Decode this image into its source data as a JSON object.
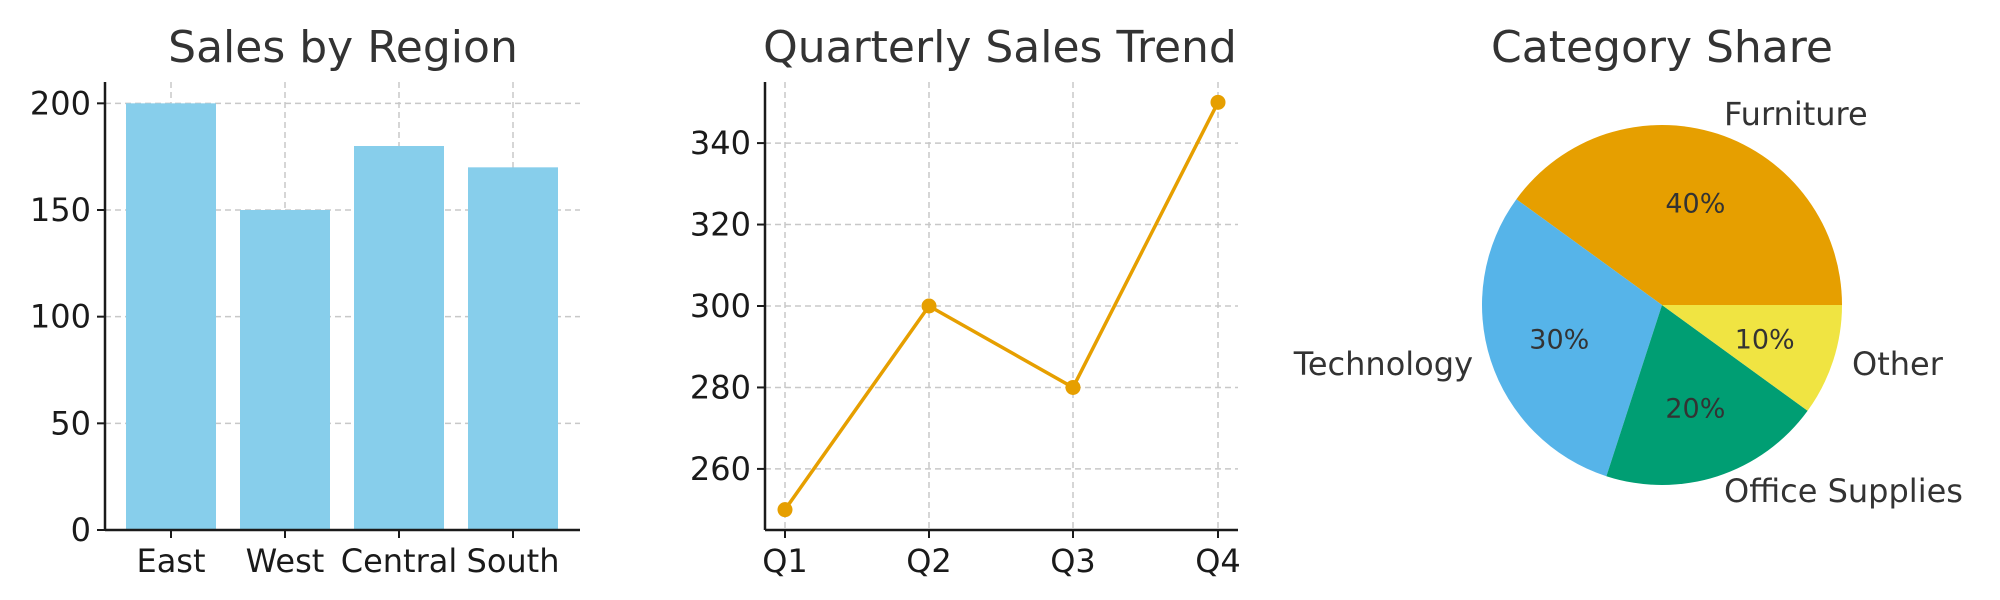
{
  "chart_data": [
    {
      "type": "bar",
      "title": "Sales by Region",
      "categories": [
        "East",
        "West",
        "Central",
        "South"
      ],
      "values": [
        200,
        150,
        180,
        170
      ],
      "ylim": [
        0,
        210
      ],
      "yticks": [
        0,
        50,
        100,
        150,
        200
      ],
      "grid": true,
      "color": "#87ceeb"
    },
    {
      "type": "line",
      "title": "Quarterly Sales Trend",
      "categories": [
        "Q1",
        "Q2",
        "Q3",
        "Q4"
      ],
      "values": [
        250,
        300,
        280,
        350
      ],
      "ylim": [
        245,
        355
      ],
      "yticks": [
        260,
        280,
        300,
        320,
        340
      ],
      "grid": true,
      "color": "#e69f00",
      "marker": "circle"
    },
    {
      "type": "pie",
      "title": "Category Share",
      "labels": [
        "Furniture",
        "Technology",
        "Office Supplies",
        "Other"
      ],
      "values": [
        40,
        30,
        20,
        10
      ],
      "pct_labels": [
        "40%",
        "30%",
        "20%",
        "10%"
      ],
      "colors": [
        "#e69f00",
        "#56b4e9",
        "#009e73",
        "#f0e442"
      ],
      "start_angle_deg": 0,
      "direction": "counterclockwise"
    }
  ]
}
